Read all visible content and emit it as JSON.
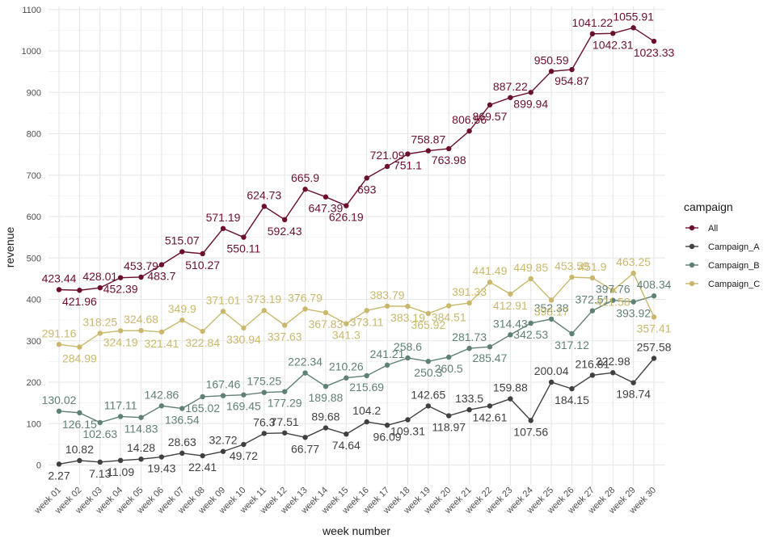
{
  "chart_data": {
    "type": "line",
    "xlabel": "week number",
    "ylabel": "revenue",
    "ylim": [
      -50,
      1100
    ],
    "yticks": [
      0,
      100,
      200,
      300,
      400,
      500,
      600,
      700,
      800,
      900,
      1000,
      1100
    ],
    "categories": [
      "week 01",
      "week 02",
      "week 03",
      "week 04",
      "week 05",
      "week 06",
      "week 07",
      "week 08",
      "week 09",
      "week 10",
      "week 11",
      "week 12",
      "week 13",
      "week 14",
      "week 15",
      "week 16",
      "week 17",
      "week 18",
      "week 19",
      "week 20",
      "week 21",
      "week 22",
      "week 23",
      "week 24",
      "week 25",
      "week 26",
      "week 27",
      "week 28",
      "week 29",
      "week 30"
    ],
    "grid": true,
    "legend": {
      "title": "campaign",
      "placement": "right"
    },
    "series": [
      {
        "name": "All",
        "color": "#6b0f2b",
        "values": [
          423.44,
          421.96,
          428.01,
          452.39,
          453.79,
          483.7,
          515.07,
          510.27,
          571.19,
          550.11,
          624.73,
          592.43,
          665.9,
          647.39,
          626.19,
          693,
          721.09,
          751.1,
          758.87,
          763.98,
          806.56,
          869.57,
          887.22,
          899.94,
          950.59,
          954.87,
          1041.22,
          1042.31,
          1055.91,
          1023.33
        ]
      },
      {
        "name": "Campaign_A",
        "color": "#404040",
        "values": [
          2.27,
          10.82,
          7.13,
          11.09,
          14.28,
          19.43,
          28.63,
          22.41,
          32.72,
          49.72,
          76.3,
          77.51,
          66.77,
          89.68,
          74.64,
          104.2,
          96.09,
          109.31,
          142.65,
          118.97,
          133.5,
          142.61,
          159.88,
          107.56,
          200.04,
          184.15,
          216.81,
          222.98,
          198.74,
          257.58
        ]
      },
      {
        "name": "Campaign_B",
        "color": "#5f8076",
        "values": [
          130.02,
          126.15,
          102.63,
          117.11,
          114.83,
          142.86,
          136.54,
          165.02,
          167.46,
          169.45,
          175.25,
          177.29,
          222.34,
          189.88,
          210.26,
          215.69,
          241.21,
          258.6,
          250.3,
          260.5,
          281.73,
          285.47,
          314.43,
          342.53,
          352.38,
          317.12,
          372.51,
          397.76,
          393.92,
          408.34
        ]
      },
      {
        "name": "Campaign_C",
        "color": "#c9b86c",
        "values": [
          291.16,
          284.99,
          318.25,
          324.19,
          324.68,
          321.41,
          349.9,
          322.84,
          371.01,
          330.94,
          373.19,
          337.63,
          376.79,
          367.83,
          341.3,
          373.11,
          383.79,
          383.19,
          365.92,
          384.51,
          391.33,
          441.49,
          412.91,
          449.85,
          398.17,
          453.59,
          451.9,
          421.58,
          463.25,
          357.41
        ]
      }
    ]
  }
}
